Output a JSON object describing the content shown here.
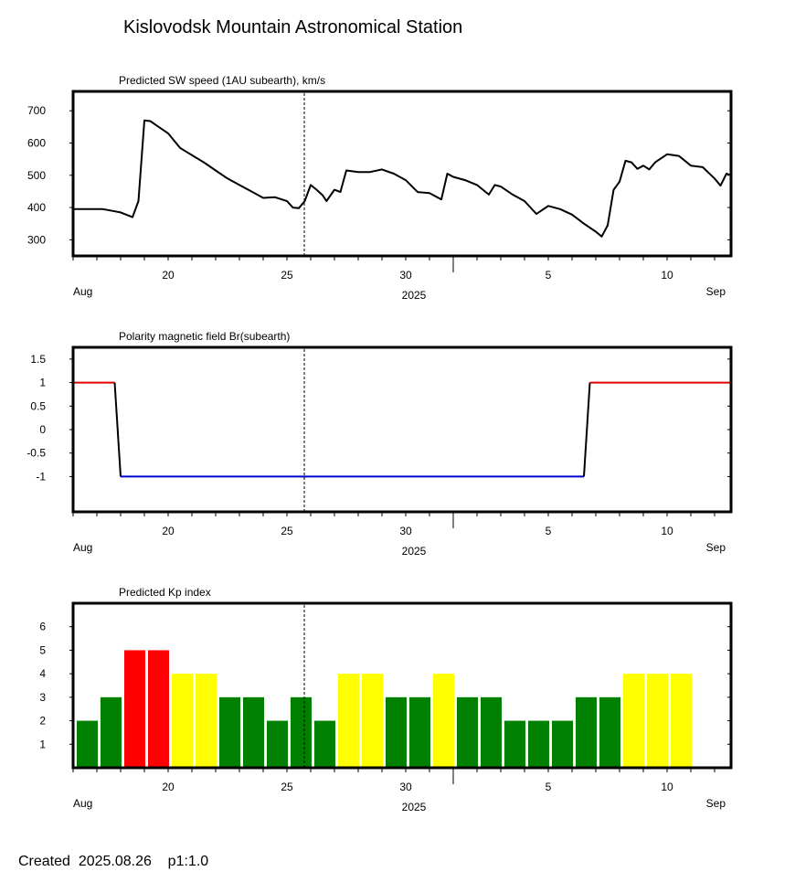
{
  "title": "Kislovodsk Mountain Astronomical Station",
  "footer": "Created  2025.08.26    p1:1.0",
  "x_axis": {
    "month_left": "Aug",
    "month_right": "Sep",
    "year": "2025",
    "date_range": [
      "2025-08-16",
      "2025-09-12"
    ],
    "current_date": "2025-08-26",
    "tick_labels": [
      {
        "date": "2025-08-20",
        "label": "20"
      },
      {
        "date": "2025-08-25",
        "label": "25"
      },
      {
        "date": "2025-08-30",
        "label": "30"
      },
      {
        "date": "2025-09-05",
        "label": "5"
      },
      {
        "date": "2025-09-10",
        "label": "10"
      }
    ]
  },
  "chart_data": [
    {
      "type": "line",
      "title": "Predicted SW speed (1AU subearth), km/s",
      "ylim": [
        250,
        760
      ],
      "y_ticks": [
        300,
        400,
        500,
        600,
        700
      ],
      "y_tick_labels": [
        "300",
        "400",
        "500",
        "600",
        "700"
      ],
      "color": "#000000",
      "points": [
        {
          "x": "2025-08-16 00:00",
          "y": 395
        },
        {
          "x": "2025-08-17 06:00",
          "y": 395
        },
        {
          "x": "2025-08-18 00:00",
          "y": 385
        },
        {
          "x": "2025-08-18 12:00",
          "y": 370
        },
        {
          "x": "2025-08-18 18:00",
          "y": 420
        },
        {
          "x": "2025-08-19 00:00",
          "y": 670
        },
        {
          "x": "2025-08-19 06:00",
          "y": 668
        },
        {
          "x": "2025-08-19 12:00",
          "y": 655
        },
        {
          "x": "2025-08-20 00:00",
          "y": 630
        },
        {
          "x": "2025-08-20 12:00",
          "y": 585
        },
        {
          "x": "2025-08-21 12:00",
          "y": 540
        },
        {
          "x": "2025-08-22 00:00",
          "y": 515
        },
        {
          "x": "2025-08-22 12:00",
          "y": 490
        },
        {
          "x": "2025-08-23 00:00",
          "y": 470
        },
        {
          "x": "2025-08-23 12:00",
          "y": 450
        },
        {
          "x": "2025-08-24 00:00",
          "y": 430
        },
        {
          "x": "2025-08-24 12:00",
          "y": 432
        },
        {
          "x": "2025-08-25 00:00",
          "y": 420
        },
        {
          "x": "2025-08-25 06:00",
          "y": 400
        },
        {
          "x": "2025-08-25 12:00",
          "y": 398
        },
        {
          "x": "2025-08-25 18:00",
          "y": 420
        },
        {
          "x": "2025-08-26 00:00",
          "y": 470
        },
        {
          "x": "2025-08-26 06:00",
          "y": 455
        },
        {
          "x": "2025-08-26 12:00",
          "y": 438
        },
        {
          "x": "2025-08-26 16:00",
          "y": 420
        },
        {
          "x": "2025-08-27 00:00",
          "y": 455
        },
        {
          "x": "2025-08-27 06:00",
          "y": 448
        },
        {
          "x": "2025-08-27 12:00",
          "y": 515
        },
        {
          "x": "2025-08-28 00:00",
          "y": 510
        },
        {
          "x": "2025-08-28 12:00",
          "y": 510
        },
        {
          "x": "2025-08-29 00:00",
          "y": 518
        },
        {
          "x": "2025-08-29 12:00",
          "y": 505
        },
        {
          "x": "2025-08-30 00:00",
          "y": 485
        },
        {
          "x": "2025-08-30 12:00",
          "y": 448
        },
        {
          "x": "2025-08-31 00:00",
          "y": 445
        },
        {
          "x": "2025-08-31 12:00",
          "y": 425
        },
        {
          "x": "2025-08-31 18:00",
          "y": 505
        },
        {
          "x": "2025-09-01 00:00",
          "y": 495
        },
        {
          "x": "2025-09-01 12:00",
          "y": 485
        },
        {
          "x": "2025-09-02 00:00",
          "y": 470
        },
        {
          "x": "2025-09-02 12:00",
          "y": 440
        },
        {
          "x": "2025-09-02 18:00",
          "y": 470
        },
        {
          "x": "2025-09-03 00:00",
          "y": 465
        },
        {
          "x": "2025-09-03 12:00",
          "y": 440
        },
        {
          "x": "2025-09-04 00:00",
          "y": 420
        },
        {
          "x": "2025-09-04 12:00",
          "y": 380
        },
        {
          "x": "2025-09-05 00:00",
          "y": 405
        },
        {
          "x": "2025-09-05 12:00",
          "y": 395
        },
        {
          "x": "2025-09-06 00:00",
          "y": 378
        },
        {
          "x": "2025-09-06 12:00",
          "y": 350
        },
        {
          "x": "2025-09-07 00:00",
          "y": 325
        },
        {
          "x": "2025-09-07 06:00",
          "y": 310
        },
        {
          "x": "2025-09-07 12:00",
          "y": 345
        },
        {
          "x": "2025-09-07 18:00",
          "y": 455
        },
        {
          "x": "2025-09-08 00:00",
          "y": 480
        },
        {
          "x": "2025-09-08 06:00",
          "y": 545
        },
        {
          "x": "2025-09-08 12:00",
          "y": 540
        },
        {
          "x": "2025-09-08 18:00",
          "y": 520
        },
        {
          "x": "2025-09-09 00:00",
          "y": 530
        },
        {
          "x": "2025-09-09 06:00",
          "y": 518
        },
        {
          "x": "2025-09-09 12:00",
          "y": 540
        },
        {
          "x": "2025-09-10 00:00",
          "y": 565
        },
        {
          "x": "2025-09-10 12:00",
          "y": 560
        },
        {
          "x": "2025-09-11 00:00",
          "y": 530
        },
        {
          "x": "2025-09-11 12:00",
          "y": 525
        },
        {
          "x": "2025-09-12 00:00",
          "y": 490
        },
        {
          "x": "2025-09-12 06:00",
          "y": 468
        },
        {
          "x": "2025-09-12 12:00",
          "y": 505
        },
        {
          "x": "2025-09-12 18:00",
          "y": 500
        }
      ]
    },
    {
      "type": "line",
      "title": "Polarity magnetic field  Br(subearth)",
      "ylim": [
        -1.75,
        1.75
      ],
      "y_ticks": [
        1.5,
        1,
        0.5,
        0,
        -0.5,
        -1
      ],
      "y_tick_labels": [
        "1.5",
        "1",
        "0.5",
        "0",
        "-0.5",
        "-1"
      ],
      "positive_color": "#e00000",
      "negative_color": "#0000cc",
      "transition_color": "#000000",
      "points": [
        {
          "x": "2025-08-16 00:00",
          "y": 1
        },
        {
          "x": "2025-08-17 18:00",
          "y": 1
        },
        {
          "x": "2025-08-18 00:00",
          "y": -1
        },
        {
          "x": "2025-09-06 12:00",
          "y": -1
        },
        {
          "x": "2025-09-06 18:00",
          "y": 1
        },
        {
          "x": "2025-09-13 00:00",
          "y": 1
        }
      ]
    },
    {
      "type": "bar",
      "title": "Predicted Kp index",
      "ylim": [
        0,
        7
      ],
      "y_ticks": [
        1,
        2,
        3,
        4,
        5,
        6
      ],
      "y_tick_labels": [
        "1",
        "2",
        "3",
        "4",
        "5",
        "6"
      ],
      "colors": {
        "2": "#008000",
        "3": "#008000",
        "4": "#ffff00",
        "5": "#ff0000"
      },
      "categories": [
        "2025-08-16",
        "2025-08-17",
        "2025-08-18",
        "2025-08-19",
        "2025-08-20",
        "2025-08-21",
        "2025-08-22",
        "2025-08-23",
        "2025-08-24",
        "2025-08-25",
        "2025-08-26",
        "2025-08-27",
        "2025-08-28",
        "2025-08-29",
        "2025-08-30",
        "2025-08-31",
        "2025-09-01",
        "2025-09-02",
        "2025-09-03",
        "2025-09-04",
        "2025-09-05",
        "2025-09-06",
        "2025-09-07",
        "2025-09-08",
        "2025-09-09",
        "2025-09-10"
      ],
      "values": [
        2,
        3,
        5,
        5,
        4,
        4,
        3,
        3,
        2,
        3,
        2,
        4,
        4,
        3,
        3,
        4,
        3,
        3,
        2,
        2,
        2,
        3,
        3,
        4,
        4,
        4
      ]
    }
  ]
}
